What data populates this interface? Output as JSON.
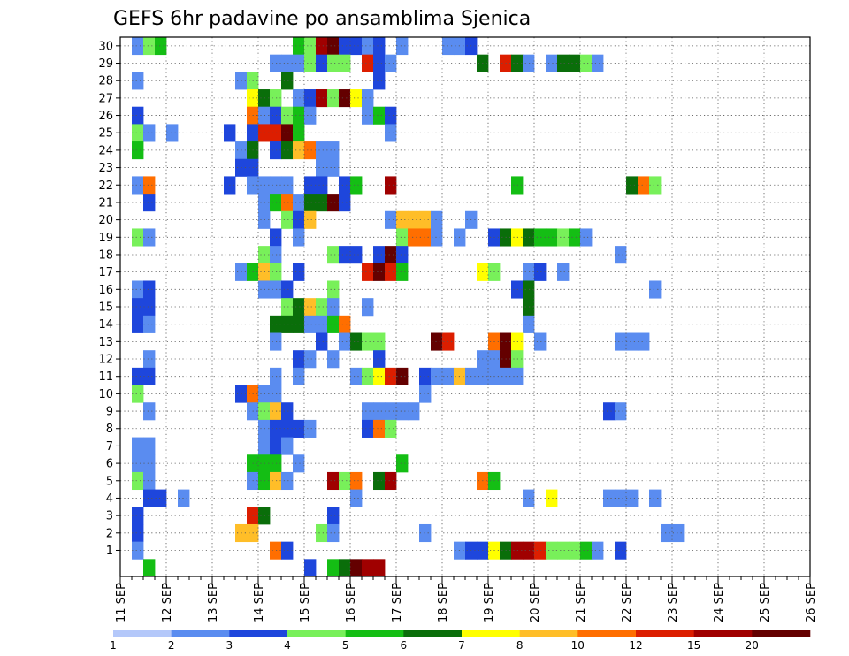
{
  "chart_data": {
    "type": "heatmap",
    "title": "GEFS 6hr padavine po ansamblima Sjenica",
    "xlabel": "",
    "ylabel": "",
    "x_ticks": [
      "11 SEP",
      "12 SEP",
      "13 SEP",
      "14 SEP",
      "15 SEP",
      "16 SEP",
      "17 SEP",
      "18 SEP",
      "19 SEP",
      "20 SEP",
      "21 SEP",
      "22 SEP",
      "23 SEP",
      "24 SEP",
      "25 SEP",
      "26 SEP"
    ],
    "y_ticks": [
      1,
      2,
      3,
      4,
      5,
      6,
      7,
      8,
      9,
      10,
      11,
      12,
      13,
      14,
      15,
      16,
      17,
      18,
      19,
      20,
      21,
      22,
      23,
      24,
      25,
      26,
      27,
      28,
      29,
      30
    ],
    "x_range_days": [
      0,
      15
    ],
    "y_range": [
      0,
      30
    ],
    "grid": true,
    "step_hours": 6,
    "colorbar": {
      "levels": [
        "1",
        "2",
        "3",
        "4",
        "5",
        "6",
        "7",
        "8",
        "10",
        "12",
        "15",
        "20"
      ],
      "colors": [
        "#b4c8fa",
        "#5a8cf0",
        "#1e46dc",
        "#78f05a",
        "#14be14",
        "#0a6e0a",
        "#ffff00",
        "#ffbe28",
        "#ff6e00",
        "#dc1e00",
        "#a00000",
        "#640000"
      ]
    },
    "cells": [
      [
        30,
        1,
        1
      ],
      [
        30,
        2,
        3
      ],
      [
        30,
        3,
        4
      ],
      [
        30,
        15,
        4
      ],
      [
        30,
        16,
        3
      ],
      [
        30,
        17,
        10
      ],
      [
        30,
        18,
        11
      ],
      [
        30,
        19,
        2
      ],
      [
        30,
        20,
        2
      ],
      [
        30,
        21,
        1
      ],
      [
        30,
        22,
        2
      ],
      [
        30,
        24,
        1
      ],
      [
        30,
        28,
        1
      ],
      [
        30,
        29,
        1
      ],
      [
        30,
        30,
        2
      ],
      [
        29,
        13,
        1
      ],
      [
        29,
        14,
        1
      ],
      [
        29,
        15,
        1
      ],
      [
        29,
        16,
        3
      ],
      [
        29,
        17,
        2
      ],
      [
        29,
        18,
        3
      ],
      [
        29,
        19,
        3
      ],
      [
        29,
        21,
        9
      ],
      [
        29,
        22,
        2
      ],
      [
        29,
        23,
        1
      ],
      [
        29,
        31,
        5
      ],
      [
        29,
        33,
        9
      ],
      [
        29,
        34,
        5
      ],
      [
        29,
        35,
        1
      ],
      [
        29,
        37,
        1
      ],
      [
        29,
        38,
        5
      ],
      [
        29,
        39,
        5
      ],
      [
        29,
        40,
        3
      ],
      [
        29,
        41,
        1
      ],
      [
        28,
        1,
        1
      ],
      [
        28,
        10,
        1
      ],
      [
        28,
        11,
        3
      ],
      [
        28,
        14,
        5
      ],
      [
        28,
        22,
        2
      ],
      [
        27,
        11,
        6
      ],
      [
        27,
        12,
        5
      ],
      [
        27,
        13,
        3
      ],
      [
        27,
        15,
        1
      ],
      [
        27,
        16,
        2
      ],
      [
        27,
        17,
        10
      ],
      [
        27,
        18,
        3
      ],
      [
        27,
        19,
        11
      ],
      [
        27,
        20,
        6
      ],
      [
        27,
        21,
        1
      ],
      [
        26,
        1,
        2
      ],
      [
        26,
        11,
        8
      ],
      [
        26,
        12,
        1
      ],
      [
        26,
        13,
        2
      ],
      [
        26,
        14,
        3
      ],
      [
        26,
        15,
        4
      ],
      [
        26,
        16,
        1
      ],
      [
        26,
        21,
        1
      ],
      [
        26,
        22,
        4
      ],
      [
        26,
        23,
        2
      ],
      [
        25,
        1,
        3
      ],
      [
        25,
        2,
        1
      ],
      [
        25,
        4,
        1
      ],
      [
        25,
        9,
        2
      ],
      [
        25,
        11,
        2
      ],
      [
        25,
        12,
        9
      ],
      [
        25,
        13,
        9
      ],
      [
        25,
        14,
        11
      ],
      [
        25,
        15,
        4
      ],
      [
        25,
        23,
        1
      ],
      [
        24,
        1,
        4
      ],
      [
        24,
        10,
        1
      ],
      [
        24,
        11,
        5
      ],
      [
        24,
        13,
        2
      ],
      [
        24,
        14,
        5
      ],
      [
        24,
        15,
        7
      ],
      [
        24,
        16,
        8
      ],
      [
        24,
        17,
        1
      ],
      [
        24,
        18,
        1
      ],
      [
        23,
        10,
        2
      ],
      [
        23,
        11,
        2
      ],
      [
        23,
        17,
        1
      ],
      [
        23,
        18,
        1
      ],
      [
        22,
        1,
        1
      ],
      [
        22,
        2,
        8
      ],
      [
        22,
        9,
        2
      ],
      [
        22,
        11,
        1
      ],
      [
        22,
        12,
        1
      ],
      [
        22,
        13,
        1
      ],
      [
        22,
        14,
        1
      ],
      [
        22,
        16,
        2
      ],
      [
        22,
        17,
        2
      ],
      [
        22,
        19,
        2
      ],
      [
        22,
        20,
        4
      ],
      [
        22,
        23,
        10
      ],
      [
        22,
        34,
        4
      ],
      [
        22,
        44,
        5
      ],
      [
        22,
        45,
        8
      ],
      [
        22,
        46,
        3
      ],
      [
        21,
        2,
        2
      ],
      [
        21,
        12,
        1
      ],
      [
        21,
        13,
        4
      ],
      [
        21,
        14,
        8
      ],
      [
        21,
        15,
        1
      ],
      [
        21,
        16,
        5
      ],
      [
        21,
        17,
        5
      ],
      [
        21,
        18,
        11
      ],
      [
        21,
        19,
        2
      ],
      [
        20,
        12,
        1
      ],
      [
        20,
        14,
        3
      ],
      [
        20,
        15,
        2
      ],
      [
        20,
        16,
        7
      ],
      [
        20,
        23,
        1
      ],
      [
        20,
        24,
        7
      ],
      [
        20,
        25,
        7
      ],
      [
        20,
        26,
        7
      ],
      [
        20,
        27,
        1
      ],
      [
        20,
        30,
        1
      ],
      [
        19,
        1,
        3
      ],
      [
        19,
        2,
        1
      ],
      [
        19,
        13,
        2
      ],
      [
        19,
        15,
        1
      ],
      [
        19,
        24,
        3
      ],
      [
        19,
        25,
        8
      ],
      [
        19,
        26,
        8
      ],
      [
        19,
        27,
        1
      ],
      [
        19,
        29,
        1
      ],
      [
        19,
        32,
        2
      ],
      [
        19,
        33,
        5
      ],
      [
        19,
        34,
        6
      ],
      [
        19,
        35,
        5
      ],
      [
        19,
        36,
        4
      ],
      [
        19,
        37,
        4
      ],
      [
        19,
        38,
        3
      ],
      [
        19,
        39,
        4
      ],
      [
        19,
        40,
        1
      ],
      [
        18,
        12,
        3
      ],
      [
        18,
        13,
        1
      ],
      [
        18,
        18,
        3
      ],
      [
        18,
        19,
        2
      ],
      [
        18,
        20,
        2
      ],
      [
        18,
        22,
        2
      ],
      [
        18,
        23,
        11
      ],
      [
        18,
        24,
        2
      ],
      [
        18,
        43,
        1
      ],
      [
        17,
        10,
        1
      ],
      [
        17,
        11,
        4
      ],
      [
        17,
        12,
        7
      ],
      [
        17,
        13,
        3
      ],
      [
        17,
        15,
        2
      ],
      [
        17,
        21,
        9
      ],
      [
        17,
        22,
        11
      ],
      [
        17,
        23,
        9
      ],
      [
        17,
        24,
        4
      ],
      [
        17,
        31,
        6
      ],
      [
        17,
        32,
        3
      ],
      [
        17,
        35,
        1
      ],
      [
        17,
        36,
        2
      ],
      [
        17,
        38,
        1
      ],
      [
        16,
        1,
        1
      ],
      [
        16,
        2,
        2
      ],
      [
        16,
        12,
        1
      ],
      [
        16,
        13,
        1
      ],
      [
        16,
        14,
        2
      ],
      [
        16,
        18,
        3
      ],
      [
        16,
        34,
        2
      ],
      [
        16,
        35,
        5
      ],
      [
        16,
        46,
        1
      ],
      [
        15,
        1,
        2
      ],
      [
        15,
        2,
        2
      ],
      [
        15,
        14,
        3
      ],
      [
        15,
        15,
        5
      ],
      [
        15,
        16,
        7
      ],
      [
        15,
        17,
        3
      ],
      [
        15,
        18,
        1
      ],
      [
        15,
        21,
        1
      ],
      [
        15,
        35,
        5
      ],
      [
        14,
        1,
        2
      ],
      [
        14,
        2,
        1
      ],
      [
        14,
        13,
        5
      ],
      [
        14,
        14,
        5
      ],
      [
        14,
        15,
        5
      ],
      [
        14,
        16,
        1
      ],
      [
        14,
        17,
        1
      ],
      [
        14,
        18,
        4
      ],
      [
        14,
        19,
        8
      ],
      [
        14,
        35,
        1
      ],
      [
        13,
        13,
        1
      ],
      [
        13,
        17,
        2
      ],
      [
        13,
        19,
        1
      ],
      [
        13,
        20,
        5
      ],
      [
        13,
        21,
        3
      ],
      [
        13,
        22,
        3
      ],
      [
        13,
        27,
        11
      ],
      [
        13,
        28,
        9
      ],
      [
        13,
        32,
        8
      ],
      [
        13,
        33,
        11
      ],
      [
        13,
        34,
        6
      ],
      [
        13,
        36,
        1
      ],
      [
        13,
        43,
        1
      ],
      [
        13,
        44,
        1
      ],
      [
        13,
        45,
        1
      ],
      [
        12,
        2,
        1
      ],
      [
        12,
        15,
        2
      ],
      [
        12,
        16,
        1
      ],
      [
        12,
        18,
        1
      ],
      [
        12,
        22,
        2
      ],
      [
        12,
        31,
        1
      ],
      [
        12,
        32,
        1
      ],
      [
        12,
        33,
        11
      ],
      [
        12,
        34,
        3
      ],
      [
        11,
        1,
        2
      ],
      [
        11,
        2,
        2
      ],
      [
        11,
        13,
        1
      ],
      [
        11,
        15,
        1
      ],
      [
        11,
        20,
        1
      ],
      [
        11,
        21,
        3
      ],
      [
        11,
        22,
        6
      ],
      [
        11,
        23,
        9
      ],
      [
        11,
        24,
        11
      ],
      [
        11,
        26,
        2
      ],
      [
        11,
        27,
        1
      ],
      [
        11,
        28,
        1
      ],
      [
        11,
        29,
        7
      ],
      [
        11,
        30,
        1
      ],
      [
        11,
        31,
        1
      ],
      [
        11,
        32,
        1
      ],
      [
        11,
        33,
        1
      ],
      [
        11,
        34,
        1
      ],
      [
        10,
        1,
        3
      ],
      [
        10,
        10,
        2
      ],
      [
        10,
        11,
        8
      ],
      [
        10,
        12,
        1
      ],
      [
        10,
        13,
        1
      ],
      [
        10,
        26,
        1
      ],
      [
        9,
        2,
        1
      ],
      [
        9,
        11,
        1
      ],
      [
        9,
        12,
        3
      ],
      [
        9,
        13,
        7
      ],
      [
        9,
        14,
        2
      ],
      [
        9,
        21,
        1
      ],
      [
        9,
        22,
        1
      ],
      [
        9,
        23,
        1
      ],
      [
        9,
        24,
        1
      ],
      [
        9,
        25,
        1
      ],
      [
        9,
        42,
        2
      ],
      [
        9,
        43,
        1
      ],
      [
        8,
        12,
        1
      ],
      [
        8,
        13,
        2
      ],
      [
        8,
        14,
        2
      ],
      [
        8,
        15,
        2
      ],
      [
        8,
        16,
        1
      ],
      [
        8,
        21,
        2
      ],
      [
        8,
        22,
        8
      ],
      [
        8,
        23,
        3
      ],
      [
        7,
        1,
        1
      ],
      [
        7,
        2,
        1
      ],
      [
        7,
        12,
        1
      ],
      [
        7,
        13,
        2
      ],
      [
        7,
        14,
        1
      ],
      [
        6,
        1,
        1
      ],
      [
        6,
        2,
        1
      ],
      [
        6,
        11,
        4
      ],
      [
        6,
        12,
        4
      ],
      [
        6,
        13,
        4
      ],
      [
        6,
        15,
        1
      ],
      [
        6,
        24,
        4
      ],
      [
        5,
        1,
        3
      ],
      [
        5,
        2,
        1
      ],
      [
        5,
        11,
        1
      ],
      [
        5,
        12,
        4
      ],
      [
        5,
        13,
        7
      ],
      [
        5,
        14,
        1
      ],
      [
        5,
        18,
        10
      ],
      [
        5,
        19,
        3
      ],
      [
        5,
        20,
        8
      ],
      [
        5,
        22,
        5
      ],
      [
        5,
        23,
        10
      ],
      [
        5,
        31,
        8
      ],
      [
        5,
        32,
        4
      ],
      [
        4,
        2,
        2
      ],
      [
        4,
        3,
        2
      ],
      [
        4,
        5,
        1
      ],
      [
        4,
        20,
        1
      ],
      [
        4,
        35,
        1
      ],
      [
        4,
        37,
        6
      ],
      [
        4,
        42,
        1
      ],
      [
        4,
        43,
        1
      ],
      [
        4,
        44,
        1
      ],
      [
        4,
        46,
        1
      ],
      [
        3,
        1,
        2
      ],
      [
        3,
        11,
        9
      ],
      [
        3,
        12,
        5
      ],
      [
        3,
        18,
        2
      ],
      [
        2,
        1,
        2
      ],
      [
        2,
        10,
        7
      ],
      [
        2,
        11,
        7
      ],
      [
        2,
        17,
        3
      ],
      [
        2,
        18,
        1
      ],
      [
        2,
        26,
        1
      ],
      [
        2,
        47,
        1
      ],
      [
        2,
        48,
        1
      ],
      [
        1,
        1,
        1
      ],
      [
        1,
        13,
        8
      ],
      [
        1,
        14,
        2
      ],
      [
        1,
        29,
        1
      ],
      [
        1,
        30,
        2
      ],
      [
        1,
        31,
        2
      ],
      [
        1,
        32,
        6
      ],
      [
        1,
        33,
        5
      ],
      [
        1,
        34,
        10
      ],
      [
        1,
        35,
        10
      ],
      [
        1,
        36,
        9
      ],
      [
        1,
        37,
        3
      ],
      [
        1,
        38,
        3
      ],
      [
        1,
        39,
        3
      ],
      [
        1,
        40,
        4
      ],
      [
        1,
        41,
        1
      ],
      [
        1,
        43,
        2
      ],
      [
        0,
        2,
        4
      ],
      [
        0,
        16,
        2
      ],
      [
        0,
        18,
        4
      ],
      [
        0,
        19,
        5
      ],
      [
        0,
        20,
        11
      ],
      [
        0,
        21,
        10
      ],
      [
        0,
        22,
        10
      ]
    ]
  }
}
